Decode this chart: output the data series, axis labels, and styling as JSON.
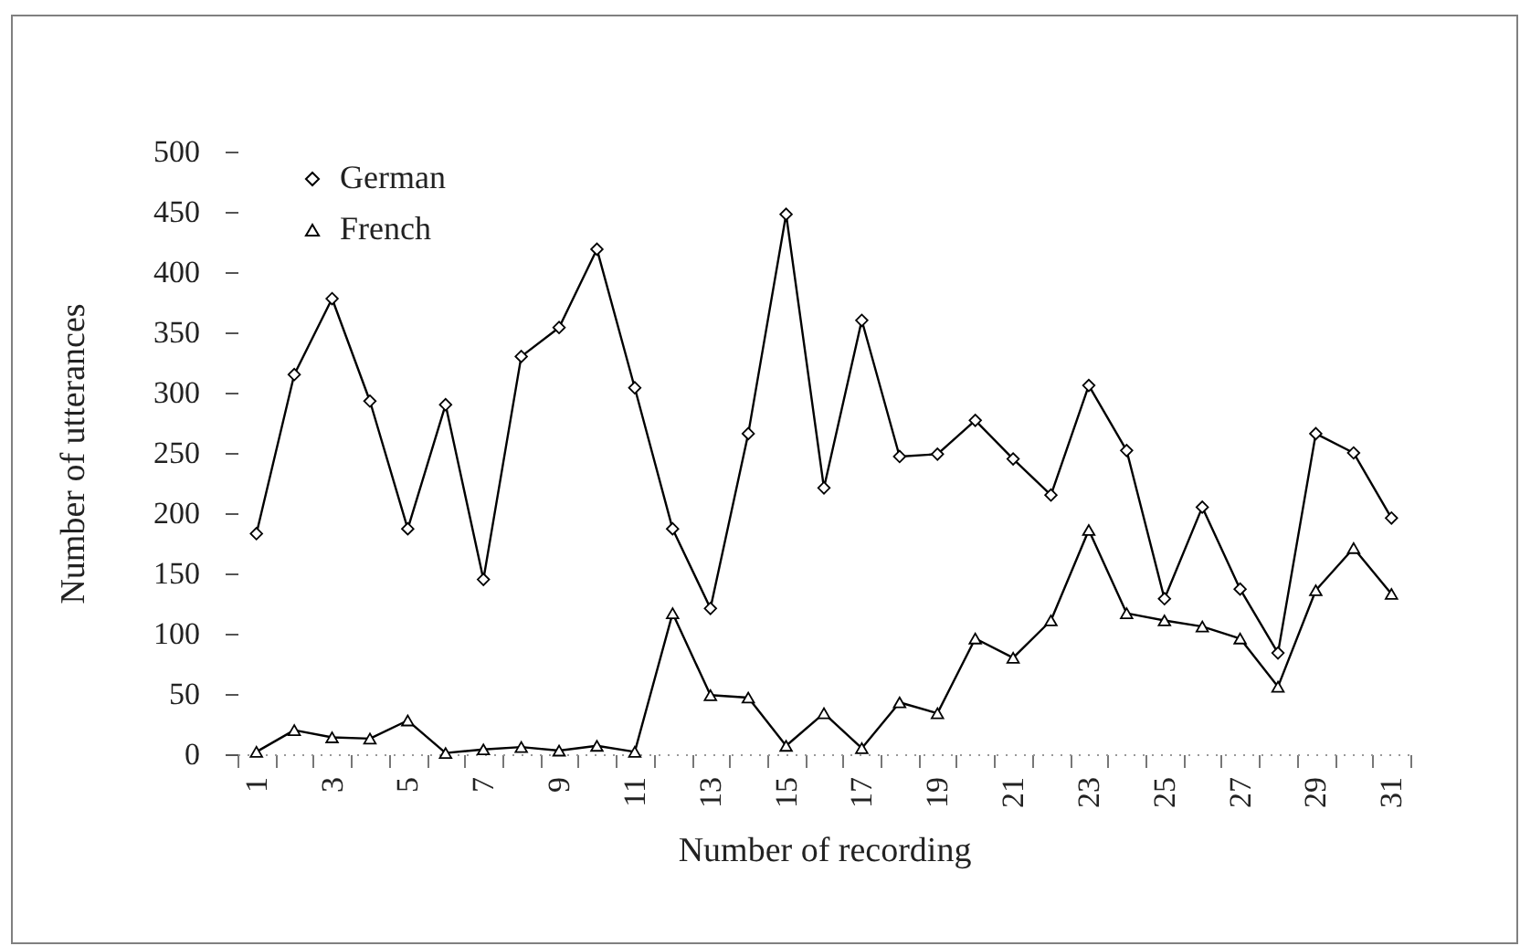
{
  "chart_data": {
    "type": "line",
    "xlabel": "Number of recording",
    "ylabel": "Number of utterances",
    "categories": [
      "1",
      null,
      "3",
      null,
      "5",
      null,
      "7",
      null,
      "9",
      null,
      "11",
      null,
      "13",
      null,
      "15",
      null,
      "17",
      null,
      "19",
      null,
      "21",
      null,
      "23",
      null,
      "25",
      null,
      "27",
      null,
      "29",
      null,
      "31"
    ],
    "ylim": [
      0,
      500
    ],
    "yticks": [
      0,
      50,
      100,
      150,
      200,
      250,
      300,
      350,
      400,
      450,
      500
    ],
    "grid": false,
    "legend": "top left",
    "line_style": "solid",
    "series": [
      {
        "name": "German",
        "color": "#000000",
        "marker": "diamond",
        "values": [
          183,
          315,
          378,
          293,
          187,
          290,
          145,
          330,
          354,
          419,
          304,
          187,
          121,
          266,
          448,
          221,
          360,
          247,
          249,
          277,
          245,
          215,
          306,
          252,
          129,
          205,
          137,
          84,
          266,
          250,
          196
        ]
      },
      {
        "name": "French",
        "color": "#000000",
        "marker": "triangle",
        "values": [
          2,
          20,
          14,
          13,
          28,
          1,
          4,
          6,
          3,
          7,
          2,
          117,
          49,
          47,
          7,
          34,
          5,
          43,
          34,
          96,
          80,
          111,
          186,
          117,
          111,
          106,
          96,
          56,
          136,
          171,
          133
        ]
      }
    ]
  }
}
